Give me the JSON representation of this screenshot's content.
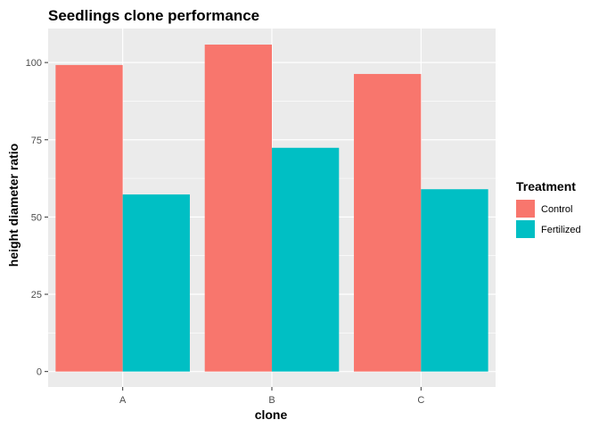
{
  "chart_data": {
    "type": "bar",
    "title": "Seedlings clone performance",
    "xlabel": "clone",
    "ylabel": "height diameter ratio",
    "categories": [
      "A",
      "B",
      "C"
    ],
    "series": [
      {
        "name": "Control",
        "color": "#F8766D",
        "values": [
          99.2,
          105.8,
          96.3
        ]
      },
      {
        "name": "Fertilized",
        "color": "#00BFC4",
        "values": [
          57.3,
          72.4,
          59.0
        ]
      }
    ],
    "ylim": [
      -5,
      111
    ],
    "yticks": [
      0,
      25,
      50,
      75,
      100
    ],
    "grid": true,
    "legend": {
      "title": "Treatment",
      "position": "right"
    },
    "colors": {
      "panel_background": "#EBEBEB",
      "gridline": "#FFFFFF",
      "tick_text": "#4D4D4D"
    }
  }
}
